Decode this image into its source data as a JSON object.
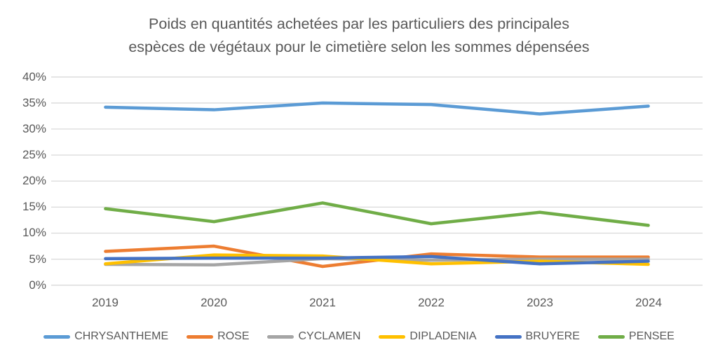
{
  "title": {
    "lines": [
      "Poids en quantités achetées par les particuliers des principales",
      "espèces de végétaux pour le cimetière selon les sommes dépensées"
    ]
  },
  "axes": {
    "y_ticks": [
      "40%",
      "35%",
      "30%",
      "25%",
      "20%",
      "15%",
      "10%",
      "5%",
      "0%"
    ],
    "x_ticks": [
      "2019",
      "2020",
      "2021",
      "2022",
      "2023",
      "2024"
    ]
  },
  "chart_data": {
    "type": "line",
    "title": "Poids en quantités achetées par les particuliers des principales espèces de végétaux pour le cimetière selon les sommes dépensées",
    "categories": [
      "2019",
      "2020",
      "2021",
      "2022",
      "2023",
      "2024"
    ],
    "series": [
      {
        "name": "CHRYSANTHEME",
        "color": "#5B9BD5",
        "values": [
          34.2,
          33.7,
          35.0,
          34.7,
          32.9,
          34.4
        ]
      },
      {
        "name": "ROSE",
        "color": "#ED7D31",
        "values": [
          6.5,
          7.5,
          3.6,
          6.0,
          5.4,
          5.4
        ]
      },
      {
        "name": "CYCLAMEN",
        "color": "#A5A5A5",
        "values": [
          4.0,
          3.9,
          5.1,
          4.8,
          5.0,
          5.0
        ]
      },
      {
        "name": "DIPLADENIA",
        "color": "#FFC000",
        "values": [
          4.1,
          5.8,
          5.6,
          4.1,
          4.6,
          4.0
        ]
      },
      {
        "name": "BRUYERE",
        "color": "#4472C4",
        "values": [
          5.1,
          5.2,
          5.2,
          5.5,
          4.1,
          4.6
        ]
      },
      {
        "name": "PENSEE",
        "color": "#70AD47",
        "values": [
          14.7,
          12.2,
          15.8,
          11.8,
          14.0,
          11.5
        ]
      }
    ],
    "xlabel": "",
    "ylabel": "",
    "ylim": [
      0,
      40
    ],
    "ytick_step": 5,
    "ytick_format": "percent",
    "grid": true,
    "legend_position": "bottom"
  },
  "colors": {
    "text": "#595959",
    "gridline": "#D9D9D9",
    "background": "#FFFFFF"
  }
}
